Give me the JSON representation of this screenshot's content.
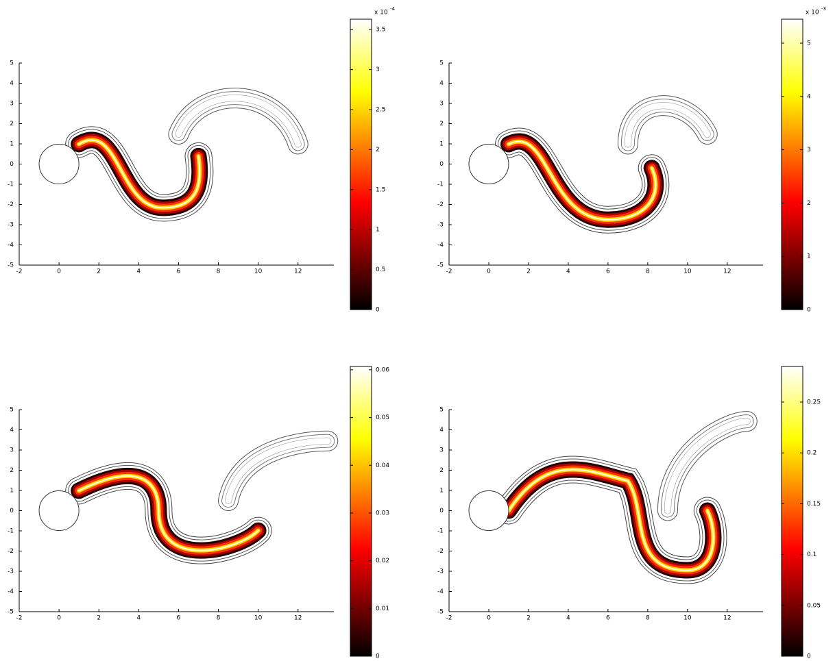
{
  "chart_data": [
    {
      "type": "contour",
      "colormap": "hot",
      "xlim": [
        -2,
        13.8
      ],
      "ylim": [
        -5,
        5
      ],
      "xticks": [
        -2,
        0,
        2,
        4,
        6,
        8,
        10,
        12
      ],
      "yticks": [
        -5,
        -4,
        -3,
        -2,
        -1,
        0,
        1,
        2,
        3,
        4,
        5
      ],
      "clim": [
        0,
        3.63
      ],
      "cticks": [
        0,
        0.5,
        1,
        1.5,
        2,
        2.5,
        3,
        3.5
      ],
      "colorbar_exponent": {
        "base": "x 10",
        "exponent": "-4"
      }
    },
    {
      "type": "contour",
      "colormap": "hot",
      "xlim": [
        -2,
        13.8
      ],
      "ylim": [
        -5,
        5
      ],
      "xticks": [
        -2,
        0,
        2,
        4,
        6,
        8,
        10,
        12
      ],
      "yticks": [
        -5,
        -4,
        -3,
        -2,
        -1,
        0,
        1,
        2,
        3,
        4,
        5
      ],
      "clim": [
        0,
        5.45
      ],
      "cticks": [
        0,
        1,
        2,
        3,
        4,
        5
      ],
      "colorbar_exponent": {
        "base": "x 10",
        "exponent": "-3"
      }
    },
    {
      "type": "contour",
      "colormap": "hot",
      "xlim": [
        -2,
        13.8
      ],
      "ylim": [
        -5,
        5
      ],
      "xticks": [
        -2,
        0,
        2,
        4,
        6,
        8,
        10,
        12
      ],
      "yticks": [
        -5,
        -4,
        -3,
        -2,
        -1,
        0,
        1,
        2,
        3,
        4,
        5
      ],
      "clim": [
        0,
        0.0607
      ],
      "cticks": [
        0,
        0.01,
        0.02,
        0.03,
        0.04,
        0.05,
        0.06
      ]
    },
    {
      "type": "contour",
      "colormap": "hot",
      "xlim": [
        -2,
        13.8
      ],
      "ylim": [
        -5,
        5
      ],
      "xticks": [
        -2,
        0,
        2,
        4,
        6,
        8,
        10,
        12
      ],
      "yticks": [
        -5,
        -4,
        -3,
        -2,
        -1,
        0,
        1,
        2,
        3,
        4,
        5
      ],
      "clim": [
        0,
        0.285
      ],
      "cticks": [
        0,
        0.05,
        0.1,
        0.15,
        0.2,
        0.25
      ]
    }
  ]
}
